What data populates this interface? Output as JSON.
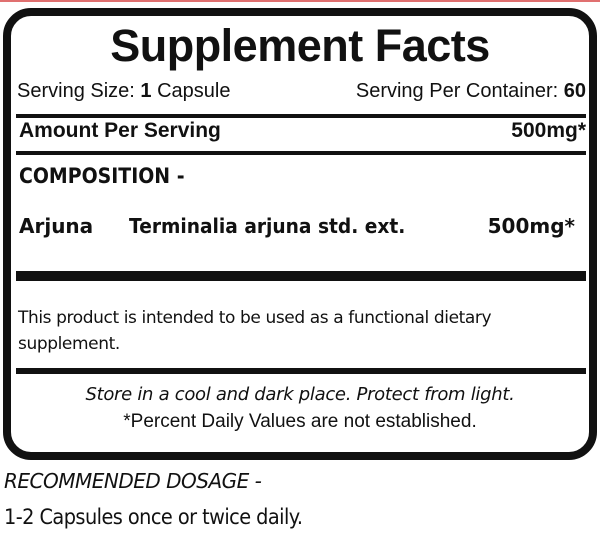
{
  "label": {
    "title": "Supplement Facts",
    "serving_size_label": "Serving Size:",
    "serving_size_value": "1",
    "serving_size_unit": "Capsule",
    "servings_per_container_label": "Serving Per Container:",
    "servings_per_container_value": "60",
    "amount_per_serving_label": "Amount Per Serving",
    "amount_per_serving_value": "500mg*",
    "composition_heading": "COMPOSITION -",
    "ingredients": [
      {
        "name": "Arjuna",
        "source": "Terminalia arjuna std. ext.",
        "amount": "500mg*"
      }
    ],
    "disclaimer": "This product is intended to be used as a functional dietary supplement.",
    "storage": "Store in a cool and dark place. Protect from light.",
    "daily_value_note": "*Percent Daily Values are not established."
  },
  "dosage": {
    "heading": "RECOMMENDED DOSAGE -",
    "text": "1-2 Capsules once or twice daily."
  },
  "colors": {
    "border": "#111111",
    "top_accent": "#e07070"
  }
}
